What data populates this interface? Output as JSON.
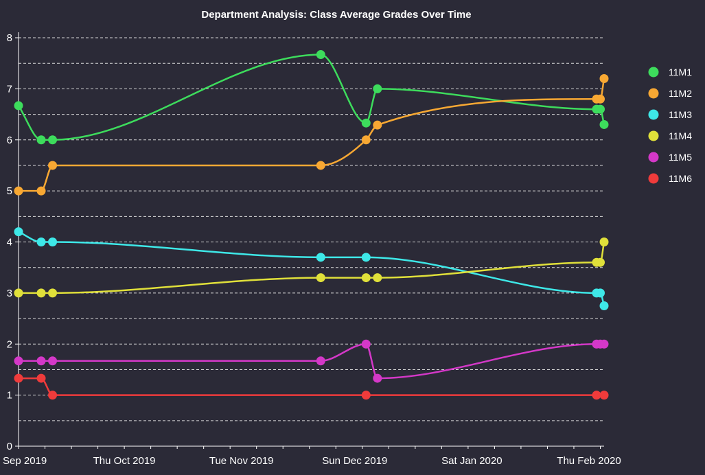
{
  "chart_data": {
    "type": "line",
    "title": "Department Analysis: Class Average Grades Over Time",
    "xlabel": "",
    "ylabel": "",
    "xlim": [
      "2019-09-03",
      "2020-02-05"
    ],
    "ylim": [
      0,
      8
    ],
    "y_ticks": [
      0,
      1,
      2,
      3,
      4,
      5,
      6,
      7,
      8
    ],
    "x_ticks": [
      {
        "date": "2019-09-01",
        "label": "Sep 2019"
      },
      {
        "date": "2019-10-01",
        "label": "Thu Oct 2019"
      },
      {
        "date": "2019-11-01",
        "label": "Tue Nov 2019"
      },
      {
        "date": "2019-12-01",
        "label": "Sun Dec 2019"
      },
      {
        "date": "2020-01-01",
        "label": "Sat Jan 2020"
      },
      {
        "date": "2020-02-01",
        "label": "Thu Feb 2020"
      }
    ],
    "grid": true,
    "legend_position": "right",
    "series": [
      {
        "name": "11M1",
        "color": "#3ddc5c",
        "x": [
          "2019-09-03",
          "2019-09-09",
          "2019-09-12",
          "2019-11-22",
          "2019-12-04",
          "2019-12-07",
          "2020-02-03",
          "2020-02-04",
          "2020-02-05"
        ],
        "y": [
          6.67,
          6.0,
          6.0,
          7.67,
          6.33,
          7.0,
          6.6,
          6.6,
          6.3
        ]
      },
      {
        "name": "11M2",
        "color": "#f8a833",
        "x": [
          "2019-09-03",
          "2019-09-09",
          "2019-09-12",
          "2019-11-22",
          "2019-12-04",
          "2019-12-07",
          "2020-02-03",
          "2020-02-04",
          "2020-02-05"
        ],
        "y": [
          5.0,
          5.0,
          5.5,
          5.5,
          6.0,
          6.29,
          6.8,
          6.8,
          7.2
        ]
      },
      {
        "name": "11M3",
        "color": "#3ee8e8",
        "x": [
          "2019-09-03",
          "2019-09-09",
          "2019-09-12",
          "2019-11-22",
          "2019-12-04",
          "2020-02-03",
          "2020-02-04",
          "2020-02-05"
        ],
        "y": [
          4.2,
          4.0,
          4.0,
          3.7,
          3.7,
          3.0,
          3.0,
          2.75
        ]
      },
      {
        "name": "11M4",
        "color": "#e0e03a",
        "x": [
          "2019-09-03",
          "2019-09-09",
          "2019-09-12",
          "2019-11-22",
          "2019-12-04",
          "2019-12-07",
          "2020-02-03",
          "2020-02-04",
          "2020-02-05"
        ],
        "y": [
          3.0,
          3.0,
          3.0,
          3.3,
          3.3,
          3.3,
          3.6,
          3.6,
          4.0
        ]
      },
      {
        "name": "11M5",
        "color": "#d438c8",
        "x": [
          "2019-09-03",
          "2019-09-09",
          "2019-09-12",
          "2019-11-22",
          "2019-12-04",
          "2019-12-07",
          "2020-02-03",
          "2020-02-04",
          "2020-02-05"
        ],
        "y": [
          1.67,
          1.67,
          1.67,
          1.67,
          2.0,
          1.33,
          2.0,
          2.0,
          2.0
        ]
      },
      {
        "name": "11M6",
        "color": "#ef3b3b",
        "x": [
          "2019-09-03",
          "2019-09-09",
          "2019-09-12",
          "2019-12-04",
          "2020-02-03",
          "2020-02-05"
        ],
        "y": [
          1.33,
          1.33,
          1.0,
          1.0,
          1.0,
          1.0
        ]
      }
    ]
  }
}
